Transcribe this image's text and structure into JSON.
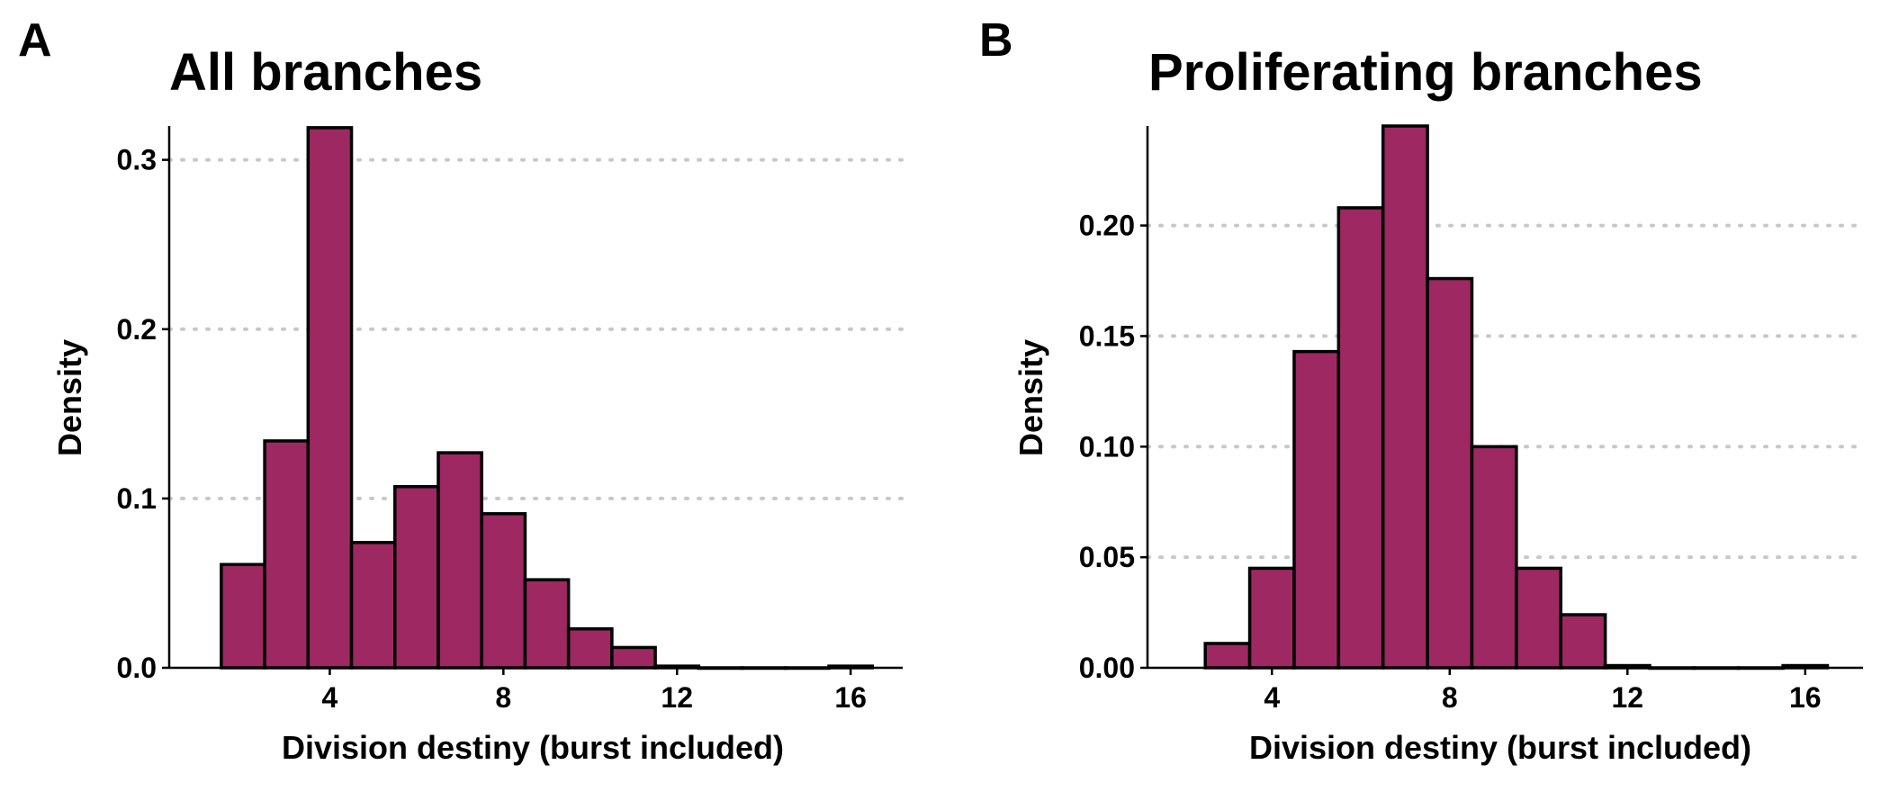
{
  "chart_data": [
    {
      "type": "bar",
      "panel_label": "A",
      "title": "All branches",
      "xlabel": "Division destiny (burst included)",
      "ylabel": "Density",
      "bin_width": 1,
      "x": [
        2,
        3,
        4,
        5,
        6,
        7,
        8,
        9,
        10,
        11,
        12,
        13,
        14,
        15,
        16
      ],
      "values": [
        0.061,
        0.134,
        0.319,
        0.074,
        0.107,
        0.127,
        0.091,
        0.052,
        0.023,
        0.012,
        0.001,
        0.0,
        0.0,
        0.0,
        0.001
      ],
      "xlim": [
        0.3,
        17.2
      ],
      "ylim": [
        0,
        0.32
      ],
      "xticks": [
        4,
        8,
        12,
        16
      ],
      "yticks": [
        0.0,
        0.1,
        0.2,
        0.3
      ],
      "ytick_labels": [
        "0.0",
        "0.1",
        "0.2",
        "0.3"
      ],
      "grid": "horizontal dotted",
      "bar_color": "#9e2861"
    },
    {
      "type": "bar",
      "panel_label": "B",
      "title": "Proliferating branches",
      "xlabel": "Division destiny (burst included)",
      "ylabel": "Density",
      "bin_width": 1,
      "x": [
        3,
        4,
        5,
        6,
        7,
        8,
        9,
        10,
        11,
        12,
        13,
        14,
        15,
        16
      ],
      "values": [
        0.011,
        0.045,
        0.143,
        0.208,
        0.245,
        0.176,
        0.1,
        0.045,
        0.024,
        0.001,
        0.0,
        0.0,
        0.0,
        0.001
      ],
      "xlim": [
        1.2,
        17.3
      ],
      "ylim": [
        0,
        0.245
      ],
      "xticks": [
        4,
        8,
        12,
        16
      ],
      "yticks": [
        0.0,
        0.05,
        0.1,
        0.15,
        0.2
      ],
      "ytick_labels": [
        "0.00",
        "0.05",
        "0.10",
        "0.15",
        "0.20"
      ],
      "grid": "horizontal dotted",
      "bar_color": "#9e2861"
    }
  ]
}
